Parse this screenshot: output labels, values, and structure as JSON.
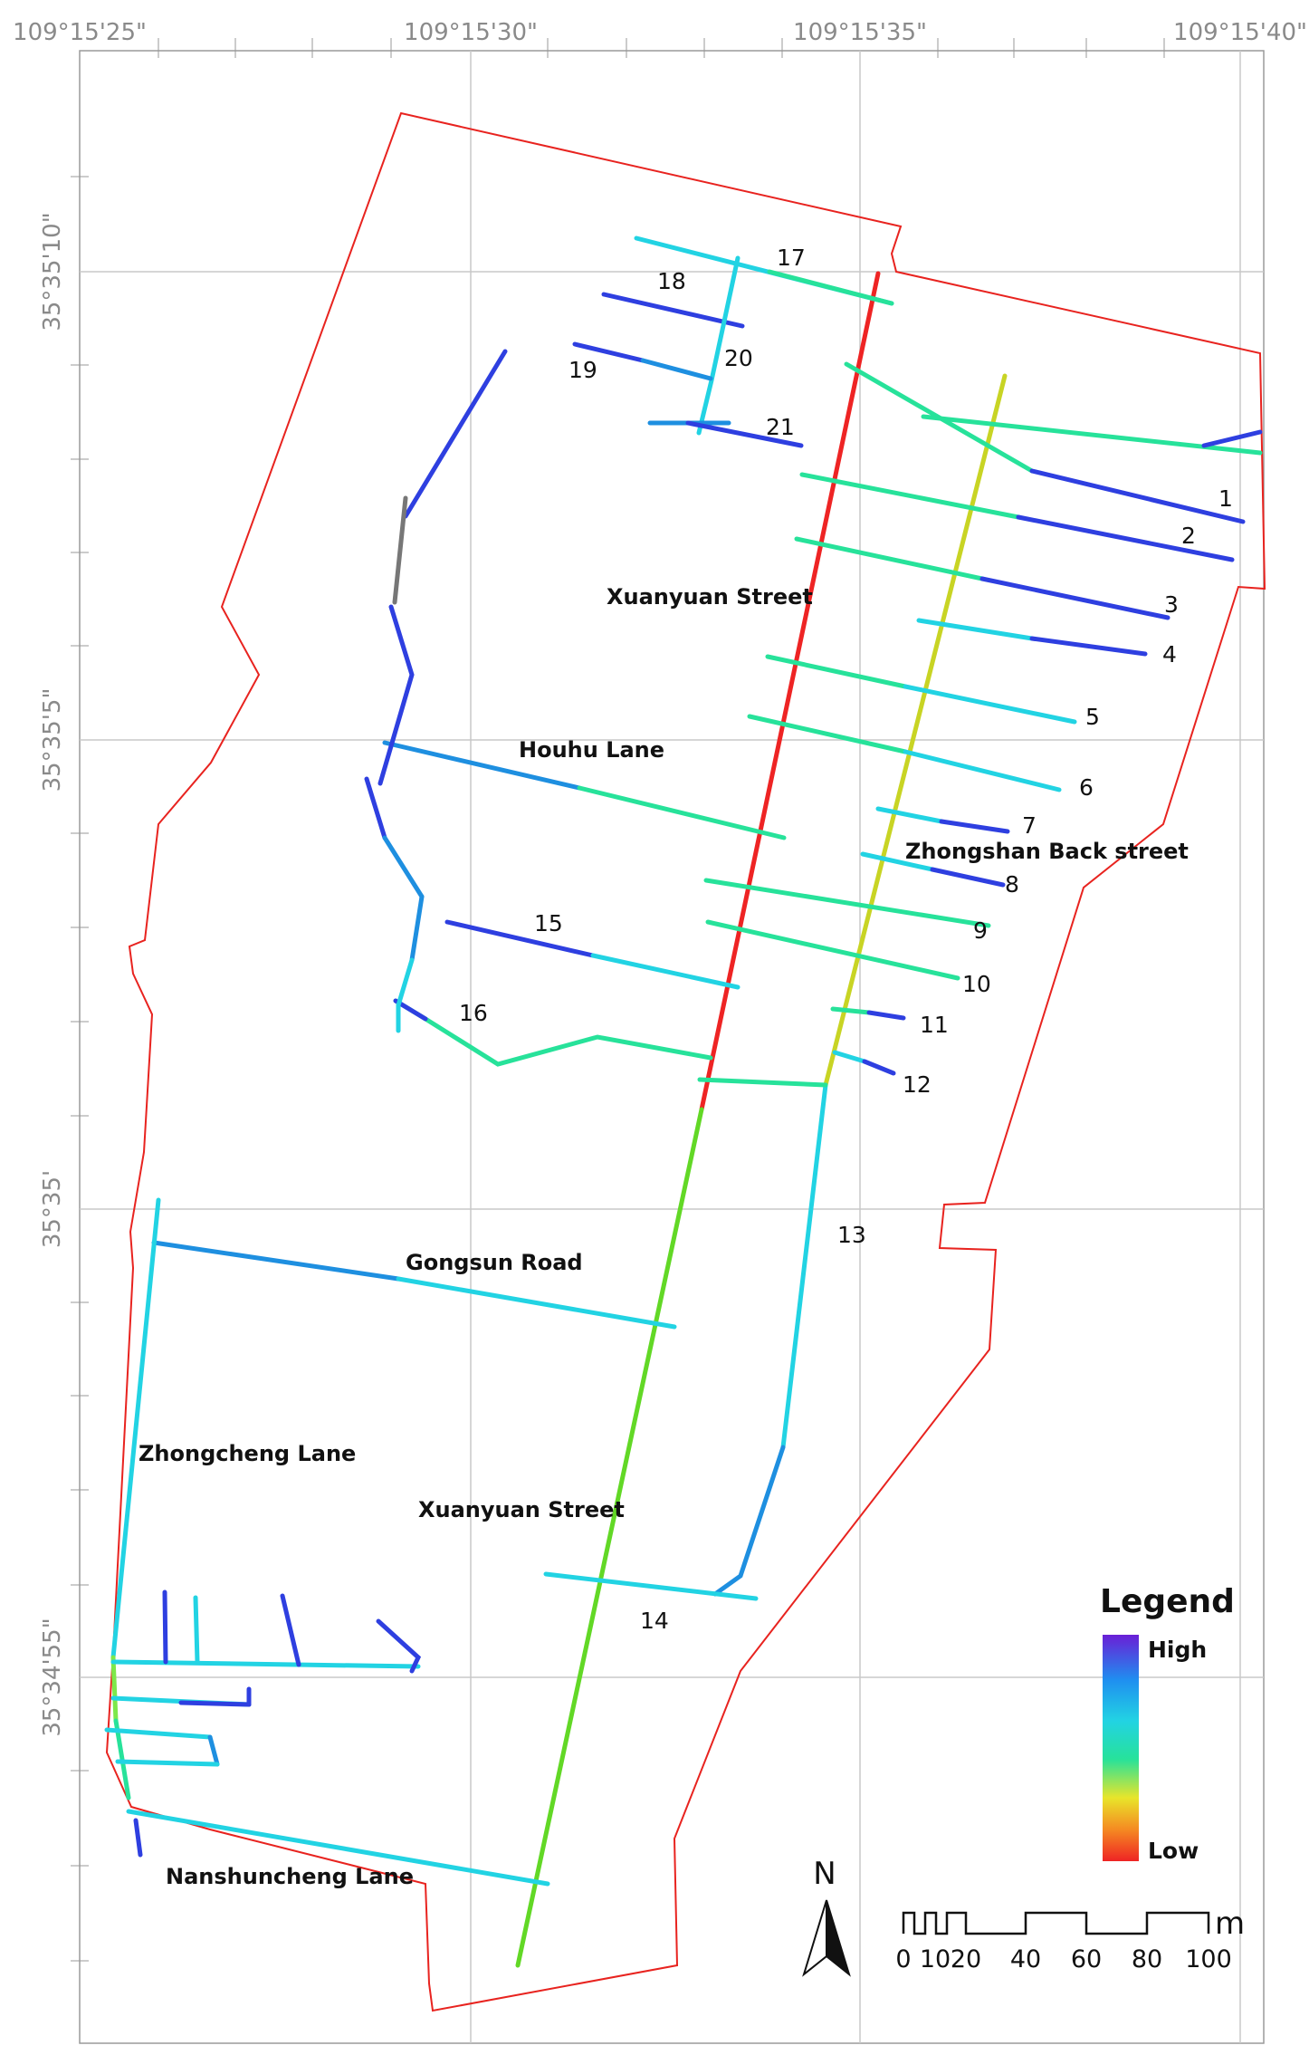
{
  "top_labels": [
    "109°15'25\"",
    "109°15'30\"",
    "109°15'35\"",
    "109°15'40\""
  ],
  "left_labels": [
    "35°35'10\"",
    "35°35'5\"",
    "35°35'",
    "35°34'55\""
  ],
  "street_labels": {
    "xuanyuan_north": "Xuanyuan Street",
    "houhu": "Houhu Lane",
    "zhongshan_back": "Zhongshan Back street",
    "gongsun": "Gongsun Road",
    "zhongcheng": "Zhongcheng Lane",
    "xuanyuan_south": "Xuanyuan Street",
    "nanshuncheng": "Nanshuncheng Lane"
  },
  "segment_numbers": [
    "1",
    "2",
    "3",
    "4",
    "5",
    "6",
    "7",
    "8",
    "9",
    "10",
    "11",
    "12",
    "13",
    "14",
    "15",
    "16",
    "17",
    "18",
    "19",
    "20",
    "21"
  ],
  "legend": {
    "title": "Legend",
    "high": "High",
    "low": "Low"
  },
  "north": "N",
  "scale": {
    "ticks": [
      "0",
      "10",
      "20",
      "40",
      "60",
      "80",
      "100"
    ],
    "unit": "m"
  },
  "colors": {
    "boundary": "#e8231f",
    "grid": "#c8c8c8",
    "ramp": [
      "#6a1fd6",
      "#2e3fe0",
      "#1e8fe0",
      "#22d3e3",
      "#27e29a",
      "#7de84a",
      "#e8e52a",
      "#f58a22",
      "#ee2424"
    ]
  }
}
